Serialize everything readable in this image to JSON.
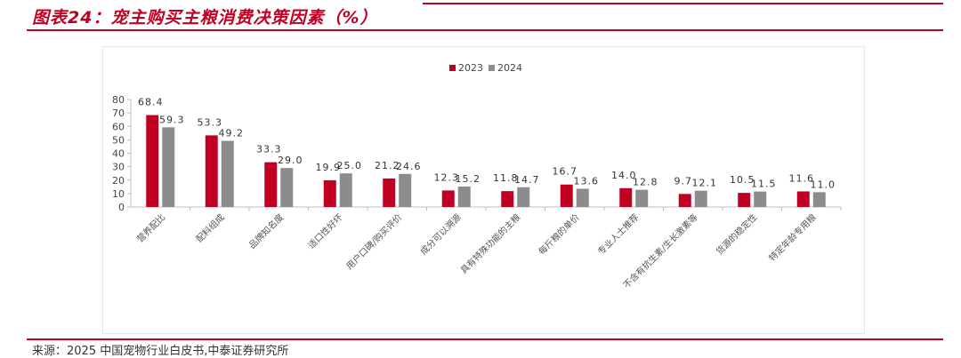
{
  "header": {
    "title": "图表24：宠主购买主粮消费决策因素（%）"
  },
  "footer": {
    "source": "来源：2025 中国宠物行业白皮书,中泰证券研究所"
  },
  "colors": {
    "accent": "#c00023",
    "series_2023": "#c00023",
    "series_2024": "#8c8c8c"
  },
  "chart_data": {
    "type": "bar",
    "title": "",
    "xlabel": "",
    "ylabel": "",
    "ylim": [
      0,
      80
    ],
    "yticks": [
      0,
      10,
      20,
      30,
      40,
      50,
      60,
      70,
      80
    ],
    "legend_position": "top-center",
    "grid": false,
    "categories": [
      "营养配比",
      "配料组成",
      "品牌知名度",
      "适口性好坏",
      "用户口碑/购买评价",
      "成分可以溯源",
      "具有特殊功能的主粮",
      "每斤粮的单价",
      "专业人士推荐",
      "不含有抗生素/生长激素等",
      "货源的稳定性",
      "特定年龄专用粮"
    ],
    "series": [
      {
        "name": "2023",
        "values": [
          68.4,
          53.3,
          33.3,
          19.9,
          21.2,
          12.3,
          11.8,
          16.7,
          14.0,
          9.7,
          10.5,
          11.6
        ]
      },
      {
        "name": "2024",
        "values": [
          59.3,
          49.2,
          29.0,
          25.0,
          24.6,
          15.2,
          14.7,
          13.6,
          12.8,
          12.1,
          11.5,
          11.0
        ]
      }
    ]
  }
}
